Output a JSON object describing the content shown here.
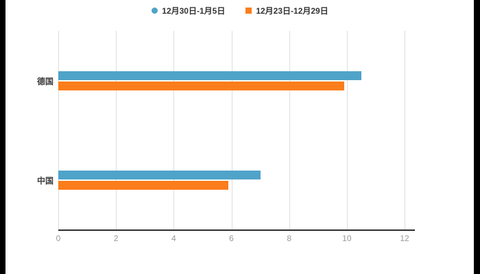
{
  "chart_data": {
    "type": "bar",
    "orientation": "horizontal",
    "title": "",
    "xlabel": "",
    "ylabel": "",
    "categories": [
      "德国",
      "中国"
    ],
    "series": [
      {
        "name": "12月30日-1月5日",
        "color": "#4fa3c9",
        "marker": "circle",
        "values": [
          10.5,
          7.0
        ]
      },
      {
        "name": "12月23日-12月29日",
        "color": "#fb7d1b",
        "marker": "square",
        "values": [
          9.9,
          5.9
        ]
      }
    ],
    "xlim": [
      0,
      12
    ],
    "xticks": [
      0,
      2,
      4,
      6,
      8,
      10,
      12
    ],
    "grid": true,
    "legend_position": "top"
  },
  "colors": {
    "grid": "#dddddd",
    "axis": "#2d2d2d",
    "tick_text": "#999999",
    "category_text": "#3d3d3d",
    "legend_text": "#333333",
    "background": "#ffffff",
    "edge": "#000000"
  }
}
